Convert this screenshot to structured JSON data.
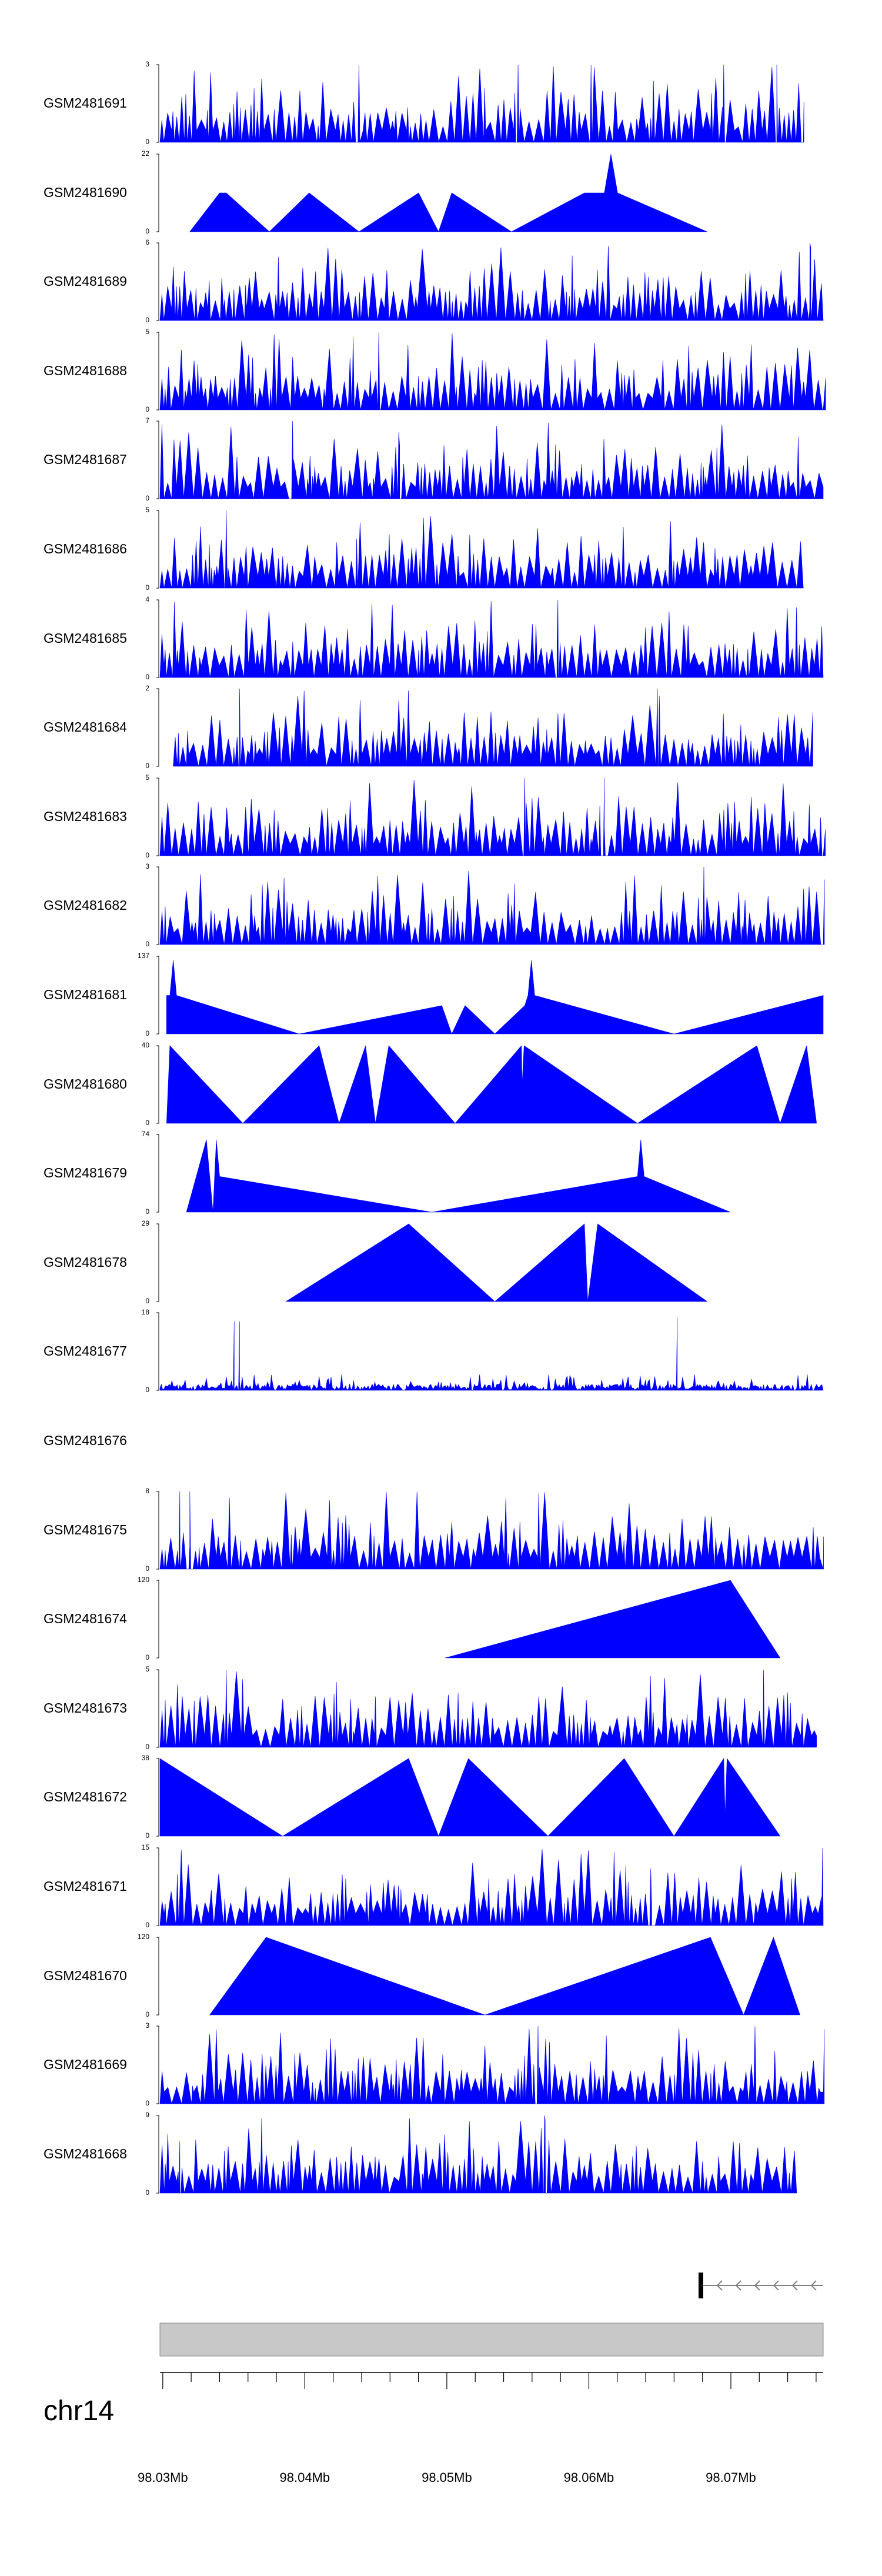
{
  "colors": {
    "signal": "#0000ff",
    "axis": "#000000",
    "ideogram": "#c8c8c8",
    "gene": "#808080"
  },
  "chart_data": {
    "type": "area",
    "title": "",
    "xlabel": "",
    "ylabel": "",
    "chromosome": "chr14",
    "xlim_mb": [
      98.0298,
      98.0765
    ],
    "x_ticks": [
      "98.03Mb",
      "98.04Mb",
      "98.05Mb",
      "98.06Mb",
      "98.07Mb"
    ],
    "tracks": [
      {
        "name": "GSM2481691",
        "ymax": "3",
        "ymin": "0",
        "max": 3,
        "style": "dense",
        "seed": 11,
        "coverage": [
          0.0,
          0.97
        ],
        "peaks": [
          [
            0.3,
            3
          ],
          [
            0.54,
            3
          ],
          [
            0.65,
            3
          ],
          [
            0.85,
            3
          ],
          [
            0.93,
            3
          ]
        ]
      },
      {
        "name": "GSM2481690",
        "ymax": "22",
        "ymin": "0",
        "max": 22,
        "style": "sparse",
        "points": [
          [
            0.045,
            0
          ],
          [
            0.09,
            11
          ],
          [
            0.1,
            11
          ],
          [
            0.165,
            0
          ],
          [
            0.225,
            11
          ],
          [
            0.3,
            0
          ],
          [
            0.39,
            11
          ],
          [
            0.42,
            0
          ],
          [
            0.44,
            11
          ],
          [
            0.53,
            0
          ],
          [
            0.64,
            11
          ],
          [
            0.67,
            11
          ],
          [
            0.68,
            22
          ],
          [
            0.69,
            11
          ],
          [
            0.825,
            0
          ]
        ]
      },
      {
        "name": "GSM2481689",
        "ymax": "6",
        "ymin": "0",
        "max": 6,
        "style": "dense",
        "seed": 23,
        "coverage": [
          0.0,
          1.0
        ],
        "peaks": [
          [
            0.98,
            6
          ]
        ]
      },
      {
        "name": "GSM2481688",
        "ymax": "5",
        "ymin": "0",
        "max": 5,
        "style": "dense",
        "seed": 37,
        "coverage": [
          0.0,
          1.0
        ],
        "peaks": [
          [
            0.33,
            5
          ]
        ]
      },
      {
        "name": "GSM2481687",
        "ymax": "7",
        "ymin": "0",
        "max": 7,
        "style": "dense",
        "seed": 41,
        "coverage": [
          0.0,
          1.0
        ],
        "peaks": [
          [
            0.2,
            7
          ],
          [
            0.36,
            6
          ]
        ]
      },
      {
        "name": "GSM2481686",
        "ymax": "5",
        "ymin": "0",
        "max": 5,
        "style": "dense",
        "seed": 53,
        "coverage": [
          0.0,
          0.97
        ],
        "peaks": [
          [
            0.1,
            5
          ]
        ]
      },
      {
        "name": "GSM2481685",
        "ymax": "4",
        "ymin": "0",
        "max": 4,
        "style": "dense",
        "seed": 61,
        "coverage": [
          0.0,
          1.0
        ],
        "peaks": [
          [
            0.6,
            4
          ]
        ]
      },
      {
        "name": "GSM2481684",
        "ymax": "2",
        "ymin": "0",
        "max": 2,
        "style": "dense",
        "seed": 67,
        "coverage": [
          0.02,
          0.98
        ],
        "peaks": [
          [
            0.12,
            2
          ],
          [
            0.75,
            2
          ]
        ]
      },
      {
        "name": "GSM2481683",
        "ymax": "5",
        "ymin": "0",
        "max": 5,
        "style": "dense",
        "seed": 71,
        "coverage": [
          0.0,
          1.0
        ],
        "peaks": [
          [
            0.55,
            5
          ],
          [
            0.67,
            5
          ]
        ]
      },
      {
        "name": "GSM2481682",
        "ymax": "3",
        "ymin": "0",
        "max": 3,
        "style": "dense",
        "seed": 79,
        "coverage": [
          0.0,
          1.0
        ],
        "peaks": [
          [
            0.82,
            3
          ]
        ]
      },
      {
        "name": "GSM2481681",
        "ymax": "137",
        "ymin": "0",
        "max": 137,
        "style": "sparse",
        "points": [
          [
            0.01,
            0
          ],
          [
            0.01,
            68
          ],
          [
            0.015,
            68
          ],
          [
            0.02,
            130
          ],
          [
            0.025,
            68
          ],
          [
            0.21,
            0
          ],
          [
            0.425,
            50
          ],
          [
            0.44,
            0
          ],
          [
            0.46,
            50
          ],
          [
            0.505,
            0
          ],
          [
            0.55,
            50
          ],
          [
            0.555,
            68
          ],
          [
            0.56,
            130
          ],
          [
            0.565,
            68
          ],
          [
            0.775,
            0
          ],
          [
            1.0,
            68
          ],
          [
            1.0,
            0
          ]
        ]
      },
      {
        "name": "GSM2481680",
        "ymax": "40",
        "ymin": "0",
        "max": 40,
        "style": "sparse",
        "points": [
          [
            0.01,
            0
          ],
          [
            0.015,
            40
          ],
          [
            0.125,
            0
          ],
          [
            0.24,
            40
          ],
          [
            0.27,
            0
          ],
          [
            0.31,
            40
          ],
          [
            0.325,
            0
          ],
          [
            0.345,
            40
          ],
          [
            0.445,
            0
          ],
          [
            0.545,
            40
          ],
          [
            0.546,
            20
          ],
          [
            0.549,
            40
          ],
          [
            0.72,
            0
          ],
          [
            0.9,
            40
          ],
          [
            0.935,
            0
          ],
          [
            0.975,
            40
          ],
          [
            0.99,
            0
          ]
        ]
      },
      {
        "name": "GSM2481679",
        "ymax": "74",
        "ymin": "0",
        "max": 74,
        "style": "sparse",
        "points": [
          [
            0.04,
            0
          ],
          [
            0.07,
            69
          ],
          [
            0.08,
            0
          ],
          [
            0.085,
            69
          ],
          [
            0.09,
            34
          ],
          [
            0.41,
            0
          ],
          [
            0.72,
            34
          ],
          [
            0.725,
            69
          ],
          [
            0.73,
            34
          ],
          [
            0.86,
            0
          ]
        ]
      },
      {
        "name": "GSM2481678",
        "ymax": "29",
        "ymin": "0",
        "max": 29,
        "style": "sparse",
        "points": [
          [
            0.19,
            0
          ],
          [
            0.375,
            29
          ],
          [
            0.505,
            0
          ],
          [
            0.64,
            29
          ],
          [
            0.645,
            0
          ],
          [
            0.66,
            29
          ],
          [
            0.825,
            0
          ]
        ]
      },
      {
        "name": "GSM2481677",
        "ymax": "18",
        "ymin": "0",
        "max": 18,
        "style": "noise",
        "seed": 89,
        "coverage": [
          0.0,
          1.0
        ],
        "peaks": [
          [
            0.112,
            16
          ],
          [
            0.12,
            16
          ],
          [
            0.78,
            17
          ]
        ]
      },
      {
        "name": "GSM2481676",
        "ymax": "",
        "ymin": "",
        "max": 1,
        "style": "empty"
      },
      {
        "name": "GSM2481675",
        "ymax": "8",
        "ymin": "0",
        "max": 8,
        "style": "dense",
        "seed": 97,
        "coverage": [
          0.0,
          1.0
        ],
        "peaks": [
          [
            0.03,
            8
          ],
          [
            0.045,
            8
          ]
        ]
      },
      {
        "name": "GSM2481674",
        "ymax": "120",
        "ymin": "0",
        "max": 120,
        "style": "sparse",
        "points": [
          [
            0.43,
            0
          ],
          [
            0.86,
            120
          ],
          [
            0.935,
            0
          ]
        ]
      },
      {
        "name": "GSM2481673",
        "ymax": "5",
        "ymin": "0",
        "max": 5,
        "style": "dense",
        "seed": 103,
        "coverage": [
          0.0,
          0.99
        ],
        "peaks": [
          [
            0.1,
            5
          ],
          [
            0.91,
            5
          ]
        ]
      },
      {
        "name": "GSM2481672",
        "ymax": "38",
        "ymin": "0",
        "max": 38,
        "style": "sparse",
        "points": [
          [
            0.0,
            0
          ],
          [
            0.0,
            38
          ],
          [
            0.185,
            0
          ],
          [
            0.375,
            38
          ],
          [
            0.42,
            0
          ],
          [
            0.465,
            38
          ],
          [
            0.585,
            0
          ],
          [
            0.7,
            38
          ],
          [
            0.775,
            0
          ],
          [
            0.85,
            38
          ],
          [
            0.852,
            10
          ],
          [
            0.855,
            38
          ],
          [
            0.935,
            0
          ]
        ]
      },
      {
        "name": "GSM2481671",
        "ymax": "15",
        "ymin": "0",
        "max": 15,
        "style": "dense",
        "seed": 109,
        "coverage": [
          0.0,
          1.0
        ],
        "peaks": [
          [
            0.74,
            11
          ],
          [
            0.999,
            15
          ]
        ]
      },
      {
        "name": "GSM2481670",
        "ymax": "120",
        "ymin": "0",
        "max": 120,
        "style": "sparse",
        "points": [
          [
            0.075,
            0
          ],
          [
            0.16,
            120
          ],
          [
            0.49,
            0
          ],
          [
            0.83,
            120
          ],
          [
            0.88,
            0
          ],
          [
            0.925,
            120
          ],
          [
            0.965,
            0
          ]
        ]
      },
      {
        "name": "GSM2481669",
        "ymax": "3",
        "ymin": "0",
        "max": 3,
        "style": "dense",
        "seed": 113,
        "coverage": [
          0.0,
          1.0
        ],
        "peaks": [
          [
            0.57,
            3
          ]
        ]
      },
      {
        "name": "GSM2481668",
        "ymax": "9",
        "ymin": "0",
        "max": 9,
        "style": "dense",
        "seed": 127,
        "coverage": [
          0.0,
          0.96
        ],
        "peaks": [
          [
            0.58,
            9
          ],
          [
            0.03,
            6
          ]
        ]
      }
    ]
  }
}
